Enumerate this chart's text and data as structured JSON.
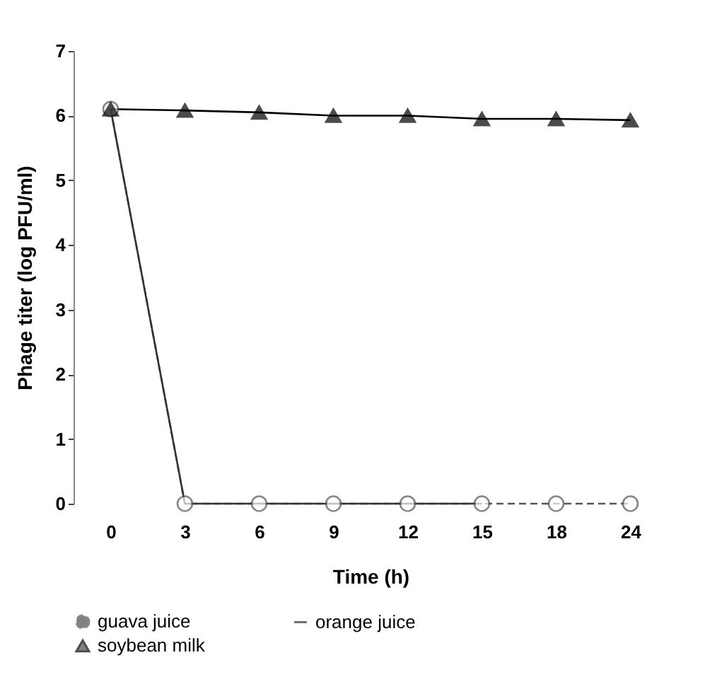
{
  "chart_data": {
    "type": "line",
    "xlabel": "Time (h)",
    "ylabel": "Phage titer (log PFU/ml)",
    "categories": [
      "0",
      "3",
      "6",
      "9",
      "12",
      "15",
      "18",
      "24"
    ],
    "series": [
      {
        "name": "guava juice",
        "color": "#555555",
        "marker": "circle",
        "line_style": "dashed",
        "values": [
          6.1,
          0,
          0,
          0,
          0,
          0,
          0,
          0
        ]
      },
      {
        "name": "orange juice",
        "color": "#333333",
        "marker": "none",
        "line_style": "solid",
        "values": [
          6.1,
          0,
          0,
          0,
          0,
          0,
          null,
          null
        ]
      },
      {
        "name": "soybean milk",
        "color": "#000000",
        "marker": "triangle",
        "line_style": "solid",
        "values": [
          6.1,
          6.08,
          6.05,
          6.0,
          6.0,
          5.95,
          5.95,
          5.93
        ]
      }
    ],
    "ylim": [
      0,
      7
    ],
    "yticks": [
      0,
      1,
      2,
      3,
      4,
      5,
      6,
      7
    ],
    "grid": false,
    "legend": "bottom"
  }
}
